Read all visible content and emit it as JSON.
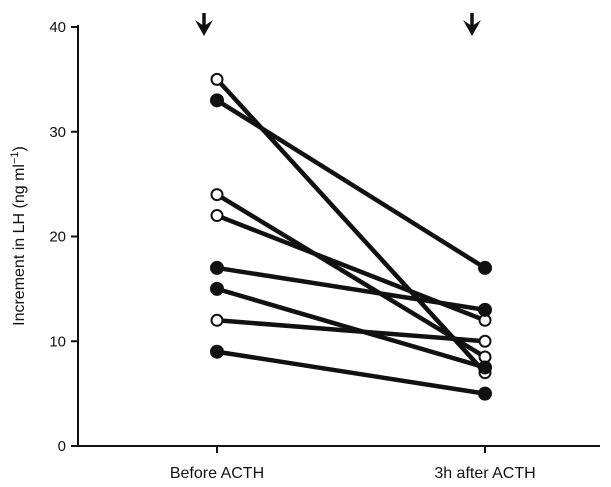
{
  "chart_data": {
    "type": "line",
    "categories": [
      "Before ACTH",
      "3h after ACTH"
    ],
    "ylabel": "Increment in LH (ng ml",
    "ylabel_sup": "−1",
    "ylabel_close": ")",
    "ylim": [
      0,
      40
    ],
    "yticks": [
      "0",
      "10",
      "20",
      "30",
      "40"
    ],
    "grid": false,
    "legend": "none",
    "annotations": [
      "arrow above Before ACTH",
      "arrow above 3h after ACTH"
    ],
    "series": [
      {
        "marker": "open",
        "values": [
          35,
          7
        ]
      },
      {
        "marker": "filled",
        "values": [
          33,
          17
        ]
      },
      {
        "marker": "open",
        "values": [
          24,
          8.5
        ]
      },
      {
        "marker": "open",
        "values": [
          22,
          12
        ]
      },
      {
        "marker": "filled",
        "values": [
          17,
          13
        ]
      },
      {
        "marker": "filled",
        "values": [
          15,
          7.5
        ]
      },
      {
        "marker": "open",
        "values": [
          12,
          10
        ]
      },
      {
        "marker": "filled",
        "values": [
          9,
          5
        ]
      }
    ],
    "colors": {
      "line": "#111111",
      "open_fill": "#ffffff",
      "filled_fill": "#111111"
    }
  }
}
